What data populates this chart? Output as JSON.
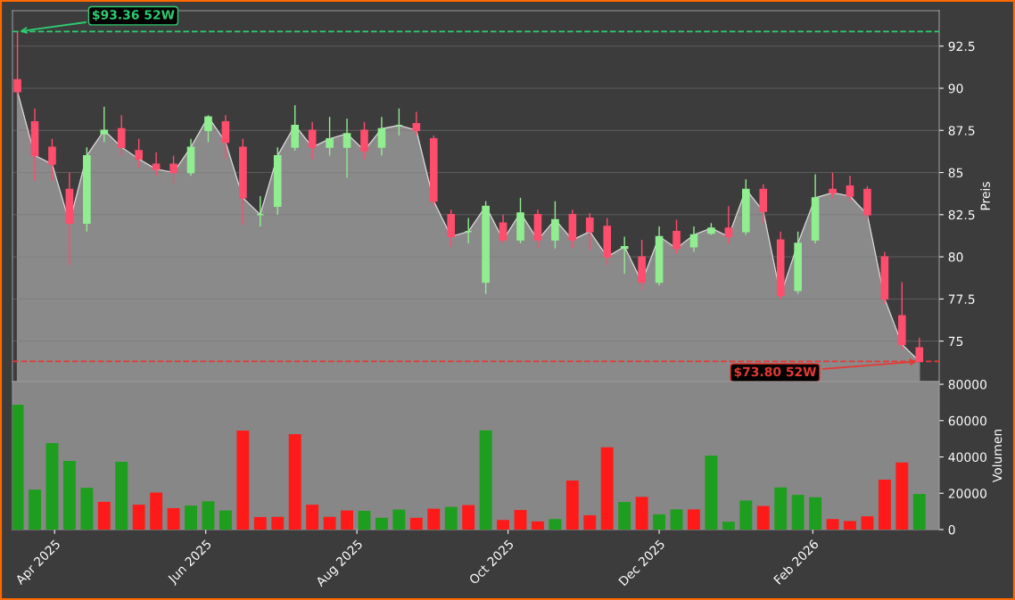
{
  "chart_data": [
    {
      "type": "candlestick",
      "ylabel": "Preis",
      "x": [
        "2025-03-17",
        "2025-03-24",
        "2025-03-31",
        "2025-04-07",
        "2025-04-14",
        "2025-04-21",
        "2025-04-28",
        "2025-05-05",
        "2025-05-12",
        "2025-05-19",
        "2025-05-26",
        "2025-06-02",
        "2025-06-09",
        "2025-06-16",
        "2025-06-23",
        "2025-06-30",
        "2025-07-07",
        "2025-07-14",
        "2025-07-21",
        "2025-07-28",
        "2025-08-04",
        "2025-08-11",
        "2025-08-18",
        "2025-08-25",
        "2025-09-01",
        "2025-09-08",
        "2025-09-15",
        "2025-09-22",
        "2025-09-29",
        "2025-10-06",
        "2025-10-13",
        "2025-10-20",
        "2025-10-27",
        "2025-11-03",
        "2025-11-10",
        "2025-11-17",
        "2025-11-24",
        "2025-12-01",
        "2025-12-08",
        "2025-12-15",
        "2025-12-22",
        "2025-12-29",
        "2026-01-05",
        "2026-01-12",
        "2026-01-19",
        "2026-01-26",
        "2026-02-02",
        "2026-02-09",
        "2026-02-16",
        "2026-02-23",
        "2026-03-02",
        "2026-03-09",
        "2026-03-16"
      ],
      "ohlc": [
        [
          90.5,
          93.36,
          89.5,
          89.8
        ],
        [
          88,
          88.8,
          84.5,
          86
        ],
        [
          86.5,
          87,
          84.5,
          85.5
        ],
        [
          84,
          85,
          79.5,
          82
        ],
        [
          82,
          86.5,
          81.5,
          86
        ],
        [
          87.3,
          88.9,
          86.8,
          87.5
        ],
        [
          87.6,
          88.4,
          86,
          86.5
        ],
        [
          86.3,
          87,
          85.3,
          85.8
        ],
        [
          85.5,
          86.2,
          84.8,
          85.2
        ],
        [
          85.5,
          86,
          84.3,
          85
        ],
        [
          85,
          87,
          84.8,
          86.5
        ],
        [
          87.5,
          88.4,
          86.8,
          88.3
        ],
        [
          88,
          88.4,
          85.8,
          86.8
        ],
        [
          86.5,
          87,
          81.9,
          83.5
        ],
        [
          82.5,
          83.6,
          81.8,
          82.5
        ],
        [
          83,
          86.5,
          82.5,
          86
        ],
        [
          86.5,
          89,
          86.3,
          87.8
        ],
        [
          87.5,
          88,
          85.8,
          86.5
        ],
        [
          86.5,
          88.3,
          86,
          87
        ],
        [
          86.5,
          88.2,
          84.7,
          87.3
        ],
        [
          87.5,
          88,
          85.8,
          86.3
        ],
        [
          86.5,
          88.3,
          86,
          87.6
        ],
        [
          87.8,
          88.8,
          87.2,
          87.8
        ],
        [
          87.9,
          88.6,
          87.2,
          87.5
        ],
        [
          87,
          87.2,
          83,
          83.3
        ],
        [
          82.5,
          82.8,
          80.6,
          81.2
        ],
        [
          81.5,
          82.3,
          80.8,
          81.5
        ],
        [
          78.5,
          83.3,
          77.8,
          83
        ],
        [
          82,
          82.5,
          80.8,
          81
        ],
        [
          81,
          83.5,
          80.8,
          82.6
        ],
        [
          82.5,
          82.8,
          80.5,
          81
        ],
        [
          81,
          83.3,
          80.5,
          82.2
        ],
        [
          82.5,
          82.8,
          80.5,
          81
        ],
        [
          82.3,
          82.6,
          80.4,
          81.5
        ],
        [
          81.8,
          82.3,
          79.5,
          80
        ],
        [
          80.5,
          81.2,
          79,
          80.6
        ],
        [
          80,
          81,
          78,
          78.5
        ],
        [
          78.5,
          81.8,
          78.3,
          81.2
        ],
        [
          81.5,
          82.2,
          80.2,
          80.5
        ],
        [
          80.6,
          81.8,
          80.3,
          81.3
        ],
        [
          81.4,
          82,
          81.3,
          81.7
        ],
        [
          81.7,
          83,
          80.8,
          81.2
        ],
        [
          81.5,
          84.6,
          81.3,
          84
        ],
        [
          84,
          84.3,
          82,
          82.7
        ],
        [
          81,
          81.5,
          77.5,
          77.7
        ],
        [
          78,
          81.5,
          77.8,
          80.8
        ],
        [
          81,
          84.9,
          80.8,
          83.5
        ],
        [
          84,
          85,
          83.5,
          83.8
        ],
        [
          84.2,
          84.8,
          83.3,
          83.6
        ],
        [
          84,
          84.2,
          82.2,
          82.5
        ],
        [
          80,
          80.3,
          77.2,
          77.5
        ],
        [
          76.5,
          78.5,
          74.5,
          74.8
        ],
        [
          74.6,
          75.2,
          73.8,
          73.8
        ]
      ],
      "colors": [
        "#ff4d6d",
        "#ff4d6d",
        "#ff4d6d",
        "#ff4d6d",
        "#90ee90",
        "#90ee90",
        "#ff4d6d",
        "#ff4d6d",
        "#ff4d6d",
        "#ff4d6d",
        "#90ee90",
        "#90ee90",
        "#ff4d6d",
        "#ff4d6d",
        "#90ee90",
        "#90ee90",
        "#90ee90",
        "#ff4d6d",
        "#90ee90",
        "#90ee90",
        "#ff4d6d",
        "#90ee90",
        "#90ee90",
        "#ff4d6d",
        "#ff4d6d",
        "#ff4d6d",
        "#90ee90",
        "#90ee90",
        "#ff4d6d",
        "#90ee90",
        "#ff4d6d",
        "#90ee90",
        "#ff4d6d",
        "#ff4d6d",
        "#ff4d6d",
        "#90ee90",
        "#ff4d6d",
        "#90ee90",
        "#ff4d6d",
        "#90ee90",
        "#90ee90",
        "#ff4d6d",
        "#90ee90",
        "#ff4d6d",
        "#ff4d6d",
        "#90ee90",
        "#90ee90",
        "#ff4d6d",
        "#ff4d6d",
        "#ff4d6d",
        "#ff4d6d",
        "#ff4d6d",
        "#ff4d6d"
      ],
      "series": [
        {
          "type": "area",
          "color": "#8a8a8a",
          "values": [
            89.8,
            86,
            85.5,
            82,
            86,
            87.5,
            86.5,
            85.8,
            85.2,
            85,
            86.5,
            88.3,
            86.8,
            83.5,
            82.5,
            86,
            87.8,
            86.5,
            87,
            87.3,
            86.3,
            87.6,
            87.8,
            87.5,
            83.3,
            81.2,
            81.5,
            83,
            81,
            82.6,
            81,
            82.2,
            81,
            81.5,
            80,
            80.6,
            78.5,
            81.2,
            80.5,
            81.3,
            81.7,
            81.2,
            84,
            82.7,
            77.7,
            80.8,
            83.5,
            83.8,
            83.6,
            82.5,
            77.5,
            74.8,
            73.8
          ]
        }
      ],
      "xlim": [
        "2025-03-15",
        "2026-03-24"
      ],
      "ylim": [
        72.6,
        94.6
      ],
      "yticks": [
        75,
        77.5,
        80,
        82.5,
        85,
        87.5,
        90,
        92.5
      ],
      "ref_lines": [
        {
          "axis": "y",
          "value": 93.36,
          "color": "#2ecc71",
          "line_style": "dashed"
        },
        {
          "axis": "y",
          "value": 73.8,
          "color": "#e53935",
          "line_style": "dashed"
        }
      ],
      "annotations": [
        {
          "text": "$93.36 52W",
          "x": "2025-03-17",
          "y": 93.36
        },
        {
          "text": "$73.80 52W",
          "x": "2026-03-16",
          "y": 73.8
        }
      ],
      "grid": true,
      "tick_labels": "y"
    },
    {
      "type": "bar",
      "ylabel": "Volumen",
      "x": [
        "2025-03-17",
        "2025-03-24",
        "2025-03-31",
        "2025-04-07",
        "2025-04-14",
        "2025-04-21",
        "2025-04-28",
        "2025-05-05",
        "2025-05-12",
        "2025-05-19",
        "2025-05-26",
        "2025-06-02",
        "2025-06-09",
        "2025-06-16",
        "2025-06-23",
        "2025-06-30",
        "2025-07-07",
        "2025-07-14",
        "2025-07-21",
        "2025-07-28",
        "2025-08-04",
        "2025-08-11",
        "2025-08-18",
        "2025-08-25",
        "2025-09-01",
        "2025-09-08",
        "2025-09-15",
        "2025-09-22",
        "2025-09-29",
        "2025-10-06",
        "2025-10-13",
        "2025-10-20",
        "2025-10-27",
        "2025-11-03",
        "2025-11-10",
        "2025-11-17",
        "2025-11-24",
        "2025-12-01",
        "2025-12-08",
        "2025-12-15",
        "2025-12-22",
        "2025-12-29",
        "2026-01-05",
        "2026-01-12",
        "2026-01-19",
        "2026-01-26",
        "2026-02-02",
        "2026-02-09",
        "2026-02-16",
        "2026-02-23",
        "2026-03-02",
        "2026-03-09",
        "2026-03-16"
      ],
      "values": [
        68700,
        22000,
        47600,
        37800,
        23000,
        15300,
        37300,
        13700,
        20400,
        11800,
        13200,
        15600,
        10500,
        54500,
        6900,
        7000,
        52500,
        13700,
        7000,
        10500,
        10300,
        6500,
        11000,
        6500,
        11500,
        12500,
        13500,
        54600,
        5300,
        10800,
        4500,
        5800,
        27000,
        7900,
        45300,
        15200,
        18000,
        8400,
        11100,
        11100,
        40800,
        4300,
        16000,
        13000,
        23200,
        19100,
        17800,
        5800,
        4700,
        7300,
        27500,
        36900,
        19600
      ],
      "colors": [
        "#1e9e1e",
        "#1e9e1e",
        "#1e9e1e",
        "#1e9e1e",
        "#1e9e1e",
        "#ff1a1a",
        "#1e9e1e",
        "#ff1a1a",
        "#ff1a1a",
        "#ff1a1a",
        "#1e9e1e",
        "#1e9e1e",
        "#1e9e1e",
        "#ff1a1a",
        "#ff1a1a",
        "#ff1a1a",
        "#ff1a1a",
        "#ff1a1a",
        "#ff1a1a",
        "#ff1a1a",
        "#1e9e1e",
        "#1e9e1e",
        "#1e9e1e",
        "#ff1a1a",
        "#ff1a1a",
        "#1e9e1e",
        "#ff1a1a",
        "#1e9e1e",
        "#ff1a1a",
        "#ff1a1a",
        "#ff1a1a",
        "#1e9e1e",
        "#ff1a1a",
        "#ff1a1a",
        "#ff1a1a",
        "#1e9e1e",
        "#ff1a1a",
        "#1e9e1e",
        "#1e9e1e",
        "#ff1a1a",
        "#1e9e1e",
        "#1e9e1e",
        "#1e9e1e",
        "#ff1a1a",
        "#1e9e1e",
        "#1e9e1e",
        "#1e9e1e",
        "#ff1a1a",
        "#ff1a1a",
        "#ff1a1a",
        "#ff1a1a",
        "#ff1a1a",
        "#1e9e1e"
      ],
      "xlim": [
        "2025-03-15",
        "2026-03-24"
      ],
      "ylim": [
        0,
        81500
      ],
      "yticks": [
        0,
        20000,
        40000,
        60000,
        80000
      ],
      "xticks": [
        {
          "value": "2025-04-01",
          "label": "Apr 2025"
        },
        {
          "value": "2025-06-01",
          "label": "Jun 2025"
        },
        {
          "value": "2025-08-01",
          "label": "Aug 2025"
        },
        {
          "value": "2025-10-01",
          "label": "Oct 2025"
        },
        {
          "value": "2025-12-01",
          "label": "Dec 2025"
        },
        {
          "value": "2026-02-01",
          "label": "Feb 2026"
        }
      ],
      "grid": false
    }
  ]
}
